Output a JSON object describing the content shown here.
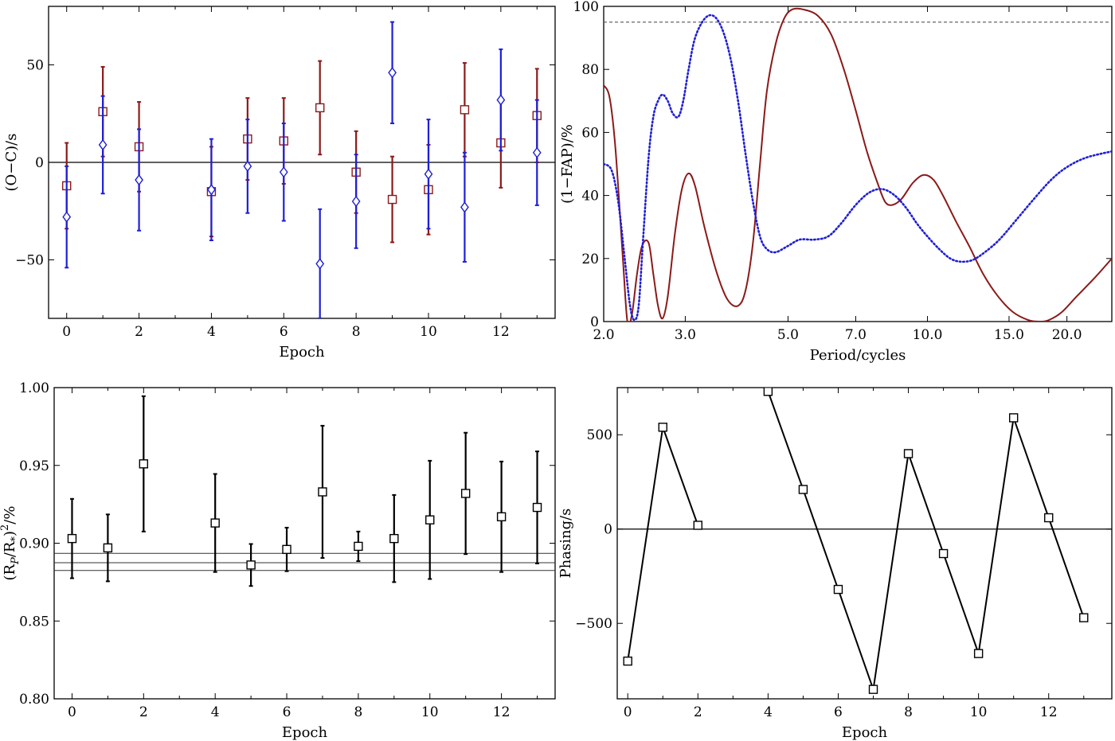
{
  "colors": {
    "red": "#8b1a1a",
    "blue": "#1f1fd6",
    "black": "#000000",
    "dash_gray": "#555555",
    "marker_fill": "#ffffff"
  },
  "chart_data": [
    {
      "id": "oc",
      "type": "scatter",
      "xlabel": "Epoch",
      "ylabel": "(O−C)/s",
      "xlim": [
        -0.5,
        13.5
      ],
      "ylim": [
        -80,
        80
      ],
      "xticks": [
        0,
        2,
        4,
        6,
        8,
        10,
        12
      ],
      "yticks": [
        -50,
        0,
        50
      ],
      "ytick_labels": [
        "−50",
        "0",
        "50"
      ],
      "hlines": [
        0
      ],
      "series": [
        {
          "color_key": "red",
          "marker": "square",
          "points": [
            {
              "x": 0,
              "y": -12,
              "err": 22
            },
            {
              "x": 1,
              "y": 26,
              "err": 23
            },
            {
              "x": 2,
              "y": 8,
              "err": 23
            },
            {
              "x": 4,
              "y": -15,
              "err": 23
            },
            {
              "x": 5,
              "y": 12,
              "err": 21
            },
            {
              "x": 6,
              "y": 11,
              "err": 22
            },
            {
              "x": 7,
              "y": 28,
              "err": 24
            },
            {
              "x": 8,
              "y": -5,
              "err": 21
            },
            {
              "x": 9,
              "y": -19,
              "err": 22
            },
            {
              "x": 10,
              "y": -14,
              "err": 23
            },
            {
              "x": 11,
              "y": 27,
              "err": 24
            },
            {
              "x": 12,
              "y": 10,
              "err": 23
            },
            {
              "x": 13,
              "y": 24,
              "err": 24
            }
          ]
        },
        {
          "color_key": "blue",
          "marker": "diamond",
          "points": [
            {
              "x": 0,
              "y": -28,
              "err": 26
            },
            {
              "x": 1,
              "y": 9,
              "err": 25
            },
            {
              "x": 2,
              "y": -9,
              "err": 26
            },
            {
              "x": 4,
              "y": -14,
              "err": 26
            },
            {
              "x": 5,
              "y": -2,
              "err": 24
            },
            {
              "x": 6,
              "y": -5,
              "err": 25
            },
            {
              "x": 7,
              "y": -52,
              "err": 28
            },
            {
              "x": 8,
              "y": -20,
              "err": 24
            },
            {
              "x": 9,
              "y": 46,
              "err": 26
            },
            {
              "x": 10,
              "y": -6,
              "err": 28
            },
            {
              "x": 11,
              "y": -23,
              "err": 28
            },
            {
              "x": 12,
              "y": 32,
              "err": 26
            },
            {
              "x": 13,
              "y": 5,
              "err": 27
            }
          ]
        }
      ]
    },
    {
      "id": "fap",
      "type": "line",
      "xlabel": "Period/cycles",
      "ylabel": "(1−FAP)/%",
      "xscale": "log",
      "xlim": [
        2.0,
        25.0
      ],
      "ylim": [
        0,
        100
      ],
      "xticks": [
        2.0,
        3.0,
        5.0,
        7.0,
        10.0,
        15.0,
        20.0
      ],
      "xtick_labels": [
        "2.0",
        "3.0",
        "5.0",
        "7.0",
        "10.0",
        "15.0",
        "20.0"
      ],
      "yticks": [
        0,
        20,
        40,
        60,
        80,
        100
      ],
      "dashed_hline": 95,
      "series": [
        {
          "color_key": "red",
          "style": "solid",
          "x": [
            2.0,
            2.06,
            2.12,
            2.2,
            2.25,
            2.3,
            2.36,
            2.42,
            2.5,
            2.56,
            2.62,
            2.68,
            2.75,
            2.85,
            2.95,
            3.05,
            3.15,
            3.3,
            3.5,
            3.7,
            3.9,
            4.05,
            4.2,
            4.35,
            4.5,
            4.7,
            4.9,
            5.1,
            5.4,
            5.8,
            6.2,
            6.6,
            7.0,
            7.4,
            7.8,
            8.1,
            8.4,
            8.8,
            9.3,
            9.8,
            10.3,
            10.8,
            11.5,
            12.3,
            13.2,
            14.2,
            15.3,
            16.5,
            17.5,
            18.3,
            19.5,
            21.0,
            23.0,
            25.0
          ],
          "y": [
            75,
            71,
            55,
            20,
            0,
            2,
            15,
            24,
            25,
            15,
            5,
            1,
            8,
            28,
            42,
            47,
            43,
            30,
            16,
            7,
            5,
            10,
            25,
            50,
            73,
            88,
            96,
            99,
            99,
            97,
            91,
            80,
            67,
            54,
            44,
            38,
            37,
            39,
            44,
            46.5,
            45,
            40,
            32,
            24,
            15,
            8,
            3,
            0.5,
            0,
            0.5,
            3,
            8,
            14,
            20
          ]
        },
        {
          "color_key": "blue",
          "style": "dotted",
          "x": [
            2.0,
            2.08,
            2.15,
            2.22,
            2.28,
            2.33,
            2.38,
            2.43,
            2.5,
            2.56,
            2.62,
            2.68,
            2.75,
            2.82,
            2.9,
            2.97,
            3.05,
            3.15,
            3.3,
            3.45,
            3.6,
            3.75,
            3.9,
            4.05,
            4.2,
            4.35,
            4.5,
            4.7,
            5.0,
            5.3,
            5.7,
            6.1,
            6.5,
            7.0,
            7.5,
            8.0,
            8.5,
            9.0,
            9.5,
            10.0,
            10.6,
            11.2,
            11.8,
            12.5,
            13.3,
            14.3,
            15.5,
            17.0,
            18.5,
            20.0,
            22.0,
            25.0
          ],
          "y": [
            50,
            48,
            38,
            20,
            5,
            0.5,
            5,
            25,
            52,
            65,
            70,
            72,
            70,
            66,
            65,
            70,
            80,
            90,
            96,
            97,
            93,
            84,
            70,
            53,
            38,
            27,
            23,
            22,
            24,
            26,
            26,
            27,
            31,
            37,
            41,
            42,
            40,
            36,
            31,
            27,
            23,
            20,
            19,
            19.5,
            22,
            26,
            32,
            39,
            45,
            49,
            52,
            54
          ]
        }
      ]
    },
    {
      "id": "depth",
      "type": "scatter",
      "xlabel": "Epoch",
      "ylabel_base": "(R",
      "ylabel_sub1": "P",
      "ylabel_mid": "/R",
      "ylabel_sub2": "*",
      "ylabel_close": ")",
      "ylabel_sup": "2",
      "ylabel_unit": "/%",
      "xlim": [
        -0.5,
        13.5
      ],
      "ylim": [
        0.8,
        1.0
      ],
      "xticks": [
        0,
        2,
        4,
        6,
        8,
        10,
        12
      ],
      "yticks": [
        0.8,
        0.85,
        0.9,
        0.95,
        1.0
      ],
      "ytick_labels": [
        "0.80",
        "0.85",
        "0.90",
        "0.95",
        "1.00"
      ],
      "hlines": [
        0.8825,
        0.8875,
        0.8935
      ],
      "series": [
        {
          "color_key": "black",
          "marker": "square",
          "points": [
            {
              "x": 0,
              "y": 0.903,
              "err": 0.0255
            },
            {
              "x": 1,
              "y": 0.897,
              "err": 0.0215
            },
            {
              "x": 2,
              "y": 0.951,
              "err": 0.0435
            },
            {
              "x": 4,
              "y": 0.913,
              "err": 0.0315
            },
            {
              "x": 5,
              "y": 0.886,
              "err": 0.0135
            },
            {
              "x": 6,
              "y": 0.896,
              "err": 0.014
            },
            {
              "x": 7,
              "y": 0.933,
              "err": 0.0425
            },
            {
              "x": 8,
              "y": 0.898,
              "err": 0.0095
            },
            {
              "x": 9,
              "y": 0.903,
              "err": 0.028
            },
            {
              "x": 10,
              "y": 0.915,
              "err": 0.038
            },
            {
              "x": 11,
              "y": 0.932,
              "err": 0.039
            },
            {
              "x": 12,
              "y": 0.917,
              "err": 0.0355
            },
            {
              "x": 13,
              "y": 0.923,
              "err": 0.036
            }
          ]
        }
      ]
    },
    {
      "id": "phasing",
      "type": "line",
      "xlabel": "Epoch",
      "ylabel": "Phasing/s",
      "xlim": [
        -0.3,
        13.8
      ],
      "ylim": [
        -900,
        750
      ],
      "xticks": [
        0,
        2,
        4,
        6,
        8,
        10,
        12
      ],
      "yticks": [
        -500,
        0,
        500
      ],
      "ytick_labels": [
        "−500",
        "0",
        "500"
      ],
      "hlines": [
        0
      ],
      "segments": [
        [
          {
            "x": 0,
            "y": -700
          },
          {
            "x": 1,
            "y": 540
          },
          {
            "x": 2,
            "y": 20
          }
        ],
        [
          {
            "x": 4,
            "y": 730
          },
          {
            "x": 5,
            "y": 210
          },
          {
            "x": 6,
            "y": -320
          },
          {
            "x": 7,
            "y": -850
          },
          {
            "x": 8,
            "y": 400
          },
          {
            "x": 9,
            "y": -130
          },
          {
            "x": 10,
            "y": -660
          },
          {
            "x": 11,
            "y": 590
          },
          {
            "x": 12,
            "y": 60
          },
          {
            "x": 13,
            "y": -470
          }
        ]
      ]
    }
  ]
}
